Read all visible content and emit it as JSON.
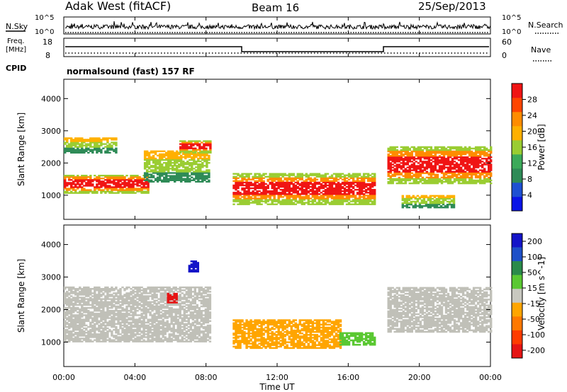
{
  "header": {
    "station": "Adak West (fitACF)",
    "beam": "Beam 16",
    "date": "25/Sep/2013"
  },
  "noise_panel": {
    "left_label": "N.Sky",
    "right_label": "N.Search",
    "left_ticks": [
      "10^5",
      "10^0"
    ],
    "right_ticks": [
      "10^5",
      "10^0"
    ]
  },
  "freq_panel": {
    "left_label_1": "Freq.",
    "left_label_2": "[MHz]",
    "right_label": "Nave",
    "left_ticks": [
      "18",
      "8"
    ],
    "right_ticks": [
      "60",
      "0"
    ],
    "cpid_label": "CPID",
    "cpid_text": "normalsound (fast) 157 RF"
  },
  "x_axis": {
    "ticks": [
      "00:00",
      "04:00",
      "08:00",
      "12:00",
      "16:00",
      "20:00",
      "00:00"
    ],
    "label": "Time UT",
    "range_hours": [
      0,
      24
    ]
  },
  "colors": {
    "power_scale": [
      "#0a14e6",
      "#1e50d2",
      "#2e8b57",
      "#3caa5a",
      "#9acd32",
      "#ffb000",
      "#ff8c00",
      "#ff4500",
      "#f01414"
    ],
    "velocity_scale": [
      "#1414c8",
      "#1e50c8",
      "#2a8a4a",
      "#5ac832",
      "#c8c8c0",
      "#ffa500",
      "#ff7800",
      "#ff3c00",
      "#e61414"
    ],
    "ground_scatter": "#c0c0b8"
  },
  "chart_data": [
    {
      "type": "heatmap",
      "panel": "power",
      "ylabel": "Slant Range [km]",
      "y_ticks": [
        1000,
        2000,
        3000,
        4000
      ],
      "ylim": [
        250,
        4600
      ],
      "xlim_hours": [
        0,
        24
      ],
      "colorbar": {
        "label": "Power [dB]",
        "ticks": [
          4,
          8,
          12,
          16,
          20,
          24,
          28
        ],
        "range": [
          0,
          32
        ]
      },
      "regions": [
        {
          "t0": 0.0,
          "t1": 4.8,
          "r_lo": 1050,
          "r_hi": 1650,
          "level": "high"
        },
        {
          "t0": 0.0,
          "t1": 3.0,
          "r_lo": 2300,
          "r_hi": 2800,
          "level": "mid"
        },
        {
          "t0": 4.5,
          "t1": 8.2,
          "r_lo": 1400,
          "r_hi": 2400,
          "level": "mid"
        },
        {
          "t0": 6.5,
          "t1": 8.2,
          "r_lo": 2300,
          "r_hi": 2700,
          "level": "high"
        },
        {
          "t0": 9.5,
          "t1": 17.5,
          "r_lo": 700,
          "r_hi": 1700,
          "level": "high"
        },
        {
          "t0": 18.2,
          "t1": 24.0,
          "r_lo": 1350,
          "r_hi": 2500,
          "level": "high"
        },
        {
          "t0": 19.0,
          "t1": 22.0,
          "r_lo": 600,
          "r_hi": 1000,
          "level": "mid"
        }
      ]
    },
    {
      "type": "heatmap",
      "panel": "velocity",
      "ylabel": "Slant Range [km]",
      "y_ticks": [
        1000,
        2000,
        3000,
        4000
      ],
      "ylim": [
        250,
        4600
      ],
      "xlim_hours": [
        0,
        24
      ],
      "colorbar": {
        "label": "Velocity [m s^-1]",
        "ticks": [
          200,
          100,
          50,
          15,
          -15,
          -50,
          -100,
          -200
        ]
      },
      "regions": [
        {
          "t0": 0.0,
          "t1": 8.2,
          "r_lo": 1000,
          "r_hi": 2700,
          "class": "ground"
        },
        {
          "t0": 9.5,
          "t1": 15.5,
          "r_lo": 800,
          "r_hi": 1700,
          "class": "-50"
        },
        {
          "t0": 15.5,
          "t1": 17.5,
          "r_lo": 900,
          "r_hi": 1300,
          "class": "50"
        },
        {
          "t0": 18.2,
          "t1": 24.0,
          "r_lo": 1300,
          "r_hi": 2700,
          "class": "ground"
        },
        {
          "t0": 5.8,
          "t1": 6.4,
          "r_lo": 2200,
          "r_hi": 2500,
          "class": "-200"
        },
        {
          "t0": 7.0,
          "t1": 7.6,
          "r_lo": 3150,
          "r_hi": 3500,
          "class": "200"
        }
      ]
    }
  ]
}
